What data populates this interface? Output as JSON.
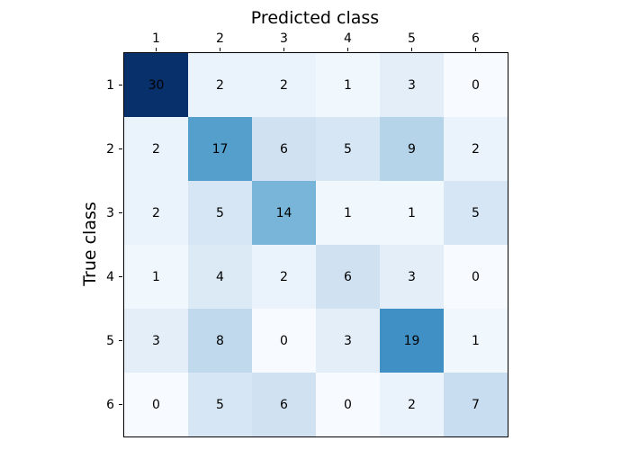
{
  "figure": {
    "background": "#ffffff",
    "axis_color": "#000000",
    "text_color": "#000000"
  },
  "chart_data": {
    "type": "heatmap",
    "title": "",
    "xlabel": "Predicted class",
    "ylabel": "True class",
    "xlabel_position": "top",
    "tick_position": {
      "x": "top",
      "y": "left"
    },
    "x_tick_labels": [
      "1",
      "2",
      "3",
      "4",
      "5",
      "6"
    ],
    "y_tick_labels": [
      "1",
      "2",
      "3",
      "4",
      "5",
      "6"
    ],
    "matrix": [
      [
        30,
        2,
        2,
        1,
        3,
        0
      ],
      [
        2,
        17,
        6,
        5,
        9,
        2
      ],
      [
        2,
        5,
        14,
        1,
        1,
        5
      ],
      [
        1,
        4,
        2,
        6,
        3,
        0
      ],
      [
        3,
        8,
        0,
        3,
        19,
        1
      ],
      [
        0,
        5,
        6,
        0,
        2,
        7
      ]
    ],
    "vmin": 0,
    "vmax": 30,
    "grid": false,
    "legend": "none",
    "colormap_name": "Blues",
    "colormap_anchors": [
      "#f7fbff",
      "#deebf7",
      "#c6dbef",
      "#9ecae1",
      "#6baed6",
      "#4292c6",
      "#2171b5",
      "#08519c",
      "#08306b"
    ],
    "cell_text_color": "#000000"
  }
}
